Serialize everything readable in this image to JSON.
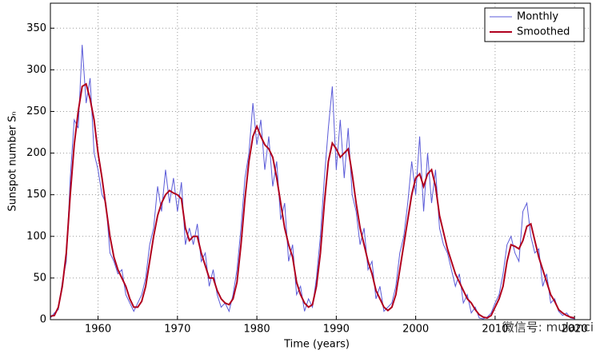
{
  "chart_data": {
    "type": "line",
    "xlabel": "Time (years)",
    "ylabel": "Sunspot number Sₙ",
    "watermark": "微信号: mulanci",
    "x": [
      1954,
      1954.5,
      1955,
      1955.5,
      1956,
      1956.5,
      1957,
      1957.5,
      1958,
      1958.5,
      1959,
      1959.5,
      1960,
      1960.5,
      1961,
      1961.5,
      1962,
      1962.5,
      1963,
      1963.5,
      1964,
      1964.5,
      1965,
      1965.5,
      1966,
      1966.5,
      1967,
      1967.5,
      1968,
      1968.5,
      1969,
      1969.5,
      1970,
      1970.5,
      1971,
      1971.5,
      1972,
      1972.5,
      1973,
      1973.5,
      1974,
      1974.5,
      1975,
      1975.5,
      1976,
      1976.5,
      1977,
      1977.5,
      1978,
      1978.5,
      1979,
      1979.5,
      1980,
      1980.5,
      1981,
      1981.5,
      1982,
      1982.5,
      1983,
      1983.5,
      1984,
      1984.5,
      1985,
      1985.5,
      1986,
      1986.5,
      1987,
      1987.5,
      1988,
      1988.5,
      1989,
      1989.5,
      1990,
      1990.5,
      1991,
      1991.5,
      1992,
      1992.5,
      1993,
      1993.5,
      1994,
      1994.5,
      1995,
      1995.5,
      1996,
      1996.5,
      1997,
      1997.5,
      1998,
      1998.5,
      1999,
      1999.5,
      2000,
      2000.5,
      2001,
      2001.5,
      2002,
      2002.5,
      2003,
      2003.5,
      2004,
      2004.5,
      2005,
      2005.5,
      2006,
      2006.5,
      2007,
      2007.5,
      2008,
      2008.5,
      2009,
      2009.5,
      2010,
      2010.5,
      2011,
      2011.5,
      2012,
      2012.5,
      2013,
      2013.5,
      2014,
      2014.5,
      2015,
      2015.5,
      2016,
      2016.5,
      2017,
      2017.5,
      2018,
      2018.5,
      2019,
      2019.5,
      2020
    ],
    "series": [
      {
        "name": "Monthly",
        "color": "#5b5bd8",
        "width": 1,
        "values": [
          2,
          8,
          12,
          45,
          70,
          170,
          240,
          230,
          330,
          260,
          290,
          200,
          180,
          150,
          140,
          80,
          70,
          55,
          60,
          30,
          20,
          10,
          20,
          30,
          50,
          90,
          110,
          160,
          130,
          180,
          140,
          170,
          130,
          165,
          90,
          110,
          90,
          115,
          70,
          80,
          40,
          60,
          30,
          15,
          20,
          10,
          30,
          60,
          110,
          170,
          200,
          260,
          210,
          240,
          180,
          220,
          160,
          190,
          120,
          140,
          70,
          90,
          30,
          40,
          10,
          25,
          15,
          50,
          100,
          170,
          230,
          280,
          180,
          240,
          170,
          230,
          150,
          130,
          90,
          110,
          60,
          70,
          25,
          40,
          10,
          15,
          20,
          40,
          80,
          100,
          140,
          190,
          150,
          220,
          130,
          200,
          140,
          180,
          110,
          90,
          80,
          60,
          40,
          55,
          20,
          30,
          8,
          15,
          2,
          1,
          3,
          8,
          20,
          30,
          55,
          90,
          100,
          80,
          70,
          130,
          140,
          100,
          80,
          85,
          40,
          55,
          20,
          25,
          10,
          5,
          8,
          2,
          1
        ]
      },
      {
        "name": "Smoothed",
        "color": "#b0001e",
        "width": 2,
        "values": [
          4,
          5,
          15,
          40,
          80,
          150,
          210,
          250,
          280,
          283,
          265,
          240,
          200,
          170,
          135,
          100,
          75,
          60,
          50,
          40,
          25,
          15,
          15,
          22,
          40,
          70,
          100,
          125,
          140,
          150,
          155,
          152,
          150,
          145,
          110,
          95,
          100,
          100,
          80,
          65,
          50,
          50,
          35,
          25,
          20,
          18,
          25,
          45,
          90,
          145,
          190,
          220,
          232,
          220,
          210,
          205,
          195,
          170,
          140,
          110,
          90,
          75,
          45,
          30,
          20,
          15,
          18,
          40,
          80,
          140,
          190,
          212,
          205,
          195,
          200,
          205,
          175,
          140,
          110,
          90,
          70,
          55,
          35,
          25,
          15,
          11,
          15,
          30,
          60,
          90,
          120,
          150,
          170,
          175,
          160,
          175,
          180,
          160,
          125,
          105,
          85,
          70,
          55,
          45,
          35,
          25,
          20,
          12,
          6,
          3,
          2,
          5,
          15,
          25,
          40,
          70,
          90,
          88,
          85,
          95,
          112,
          115,
          95,
          75,
          60,
          45,
          30,
          22,
          12,
          8,
          5,
          3,
          2
        ]
      }
    ],
    "xlim": [
      1954,
      2022
    ],
    "ylim": [
      0,
      380
    ],
    "xticks": [
      1960,
      1970,
      1980,
      1990,
      2000,
      2010,
      2020
    ],
    "yticks": [
      0,
      50,
      100,
      150,
      200,
      250,
      300,
      350
    ],
    "grid": true,
    "legend": "upper-right"
  }
}
